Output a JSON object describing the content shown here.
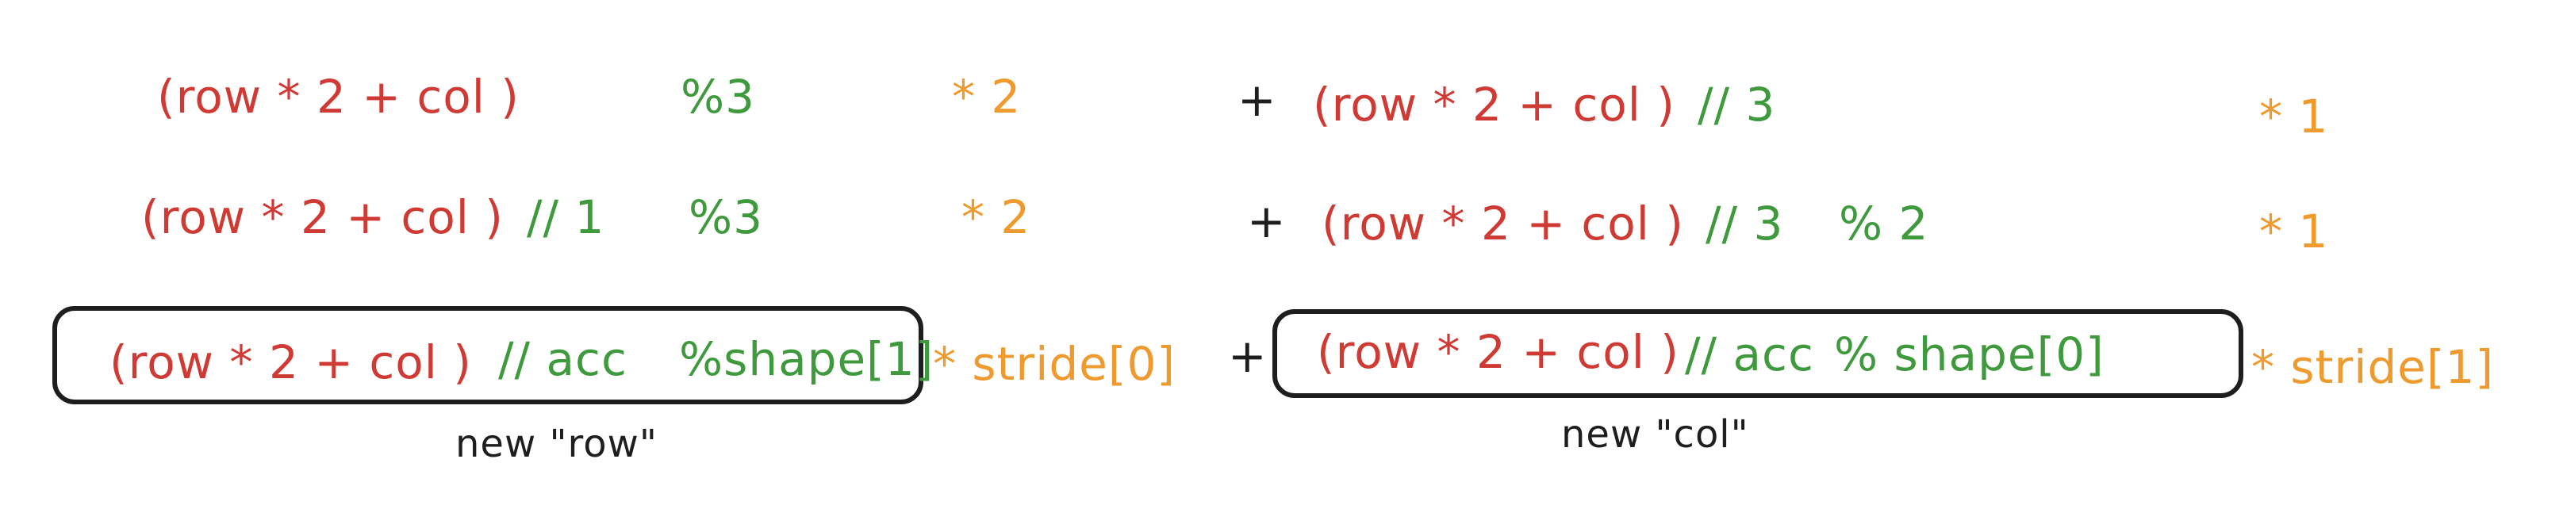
{
  "colors": {
    "row_expr": "#d03a34",
    "operator": "#3f9a3e",
    "stride": "#ef9a2e",
    "text": "#1e1e1e"
  },
  "rows": [
    {
      "row_expr": "(row * 2 + col )",
      "row_ops": [
        "%3"
      ],
      "row_stride": "* 2",
      "plus": "+",
      "col_expr": "(row * 2 + col )",
      "col_ops": [
        "// 3"
      ],
      "col_stride": "* 1"
    },
    {
      "row_expr": "(row * 2 + col )",
      "row_ops": [
        "// 1",
        "%3"
      ],
      "row_stride": "* 2",
      "plus": "+",
      "col_expr": "(row * 2 + col )",
      "col_ops": [
        "// 3",
        "% 2"
      ],
      "col_stride": "* 1"
    },
    {
      "row_expr": "(row * 2 + col )",
      "row_ops": [
        "// acc",
        "%shape[1]"
      ],
      "row_stride": "* stride[0]",
      "plus": "+",
      "col_expr": "(row * 2 + col )",
      "col_ops": [
        "// acc",
        "% shape[0]"
      ],
      "col_stride": "* stride[1]"
    }
  ],
  "labels": {
    "new_row": "new \"row\"",
    "new_col": "new \"col\""
  }
}
